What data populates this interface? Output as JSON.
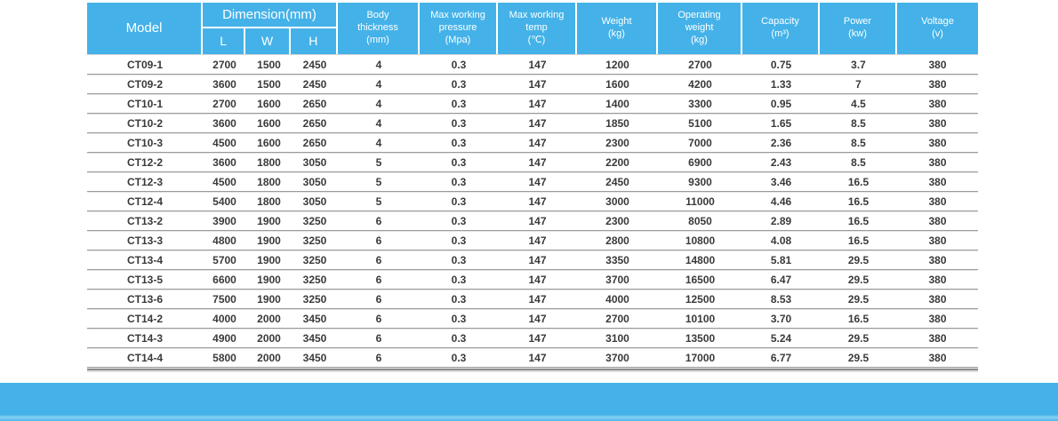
{
  "colors": {
    "accent_blue": "#44b2e8",
    "header_text": "#ffffff",
    "row_text": "#3a3a3a",
    "row_separator": "#9a9a9a"
  },
  "table": {
    "header": {
      "model": "Model",
      "dimension_group": "Dimension(mm)",
      "dim_l": "L",
      "dim_w": "W",
      "dim_h": "H",
      "body_thickness": "Body\nthickness\n(mm)",
      "max_working_pressure": "Max working\npressure\n(Mpa)",
      "max_working_temp": "Max working\ntemp\n(℃)",
      "weight": "Weight\n(kg)",
      "operating_weight": "Operating\nweight\n(kg)",
      "capacity": "Capacity\n(m³)",
      "power": "Power\n(kw)",
      "voltage": "Voltage\n(v)"
    },
    "rows": [
      [
        "CT09-1",
        "2700",
        "1500",
        "2450",
        "4",
        "0.3",
        "147",
        "1200",
        "2700",
        "0.75",
        "3.7",
        "380"
      ],
      [
        "CT09-2",
        "3600",
        "1500",
        "2450",
        "4",
        "0.3",
        "147",
        "1600",
        "4200",
        "1.33",
        "7",
        "380"
      ],
      [
        "CT10-1",
        "2700",
        "1600",
        "2650",
        "4",
        "0.3",
        "147",
        "1400",
        "3300",
        "0.95",
        "4.5",
        "380"
      ],
      [
        "CT10-2",
        "3600",
        "1600",
        "2650",
        "4",
        "0.3",
        "147",
        "1850",
        "5100",
        "1.65",
        "8.5",
        "380"
      ],
      [
        "CT10-3",
        "4500",
        "1600",
        "2650",
        "4",
        "0.3",
        "147",
        "2300",
        "7000",
        "2.36",
        "8.5",
        "380"
      ],
      [
        "CT12-2",
        "3600",
        "1800",
        "3050",
        "5",
        "0.3",
        "147",
        "2200",
        "6900",
        "2.43",
        "8.5",
        "380"
      ],
      [
        "CT12-3",
        "4500",
        "1800",
        "3050",
        "5",
        "0.3",
        "147",
        "2450",
        "9300",
        "3.46",
        "16.5",
        "380"
      ],
      [
        "CT12-4",
        "5400",
        "1800",
        "3050",
        "5",
        "0.3",
        "147",
        "3000",
        "11000",
        "4.46",
        "16.5",
        "380"
      ],
      [
        "CT13-2",
        "3900",
        "1900",
        "3250",
        "6",
        "0.3",
        "147",
        "2300",
        "8050",
        "2.89",
        "16.5",
        "380"
      ],
      [
        "CT13-3",
        "4800",
        "1900",
        "3250",
        "6",
        "0.3",
        "147",
        "2800",
        "10800",
        "4.08",
        "16.5",
        "380"
      ],
      [
        "CT13-4",
        "5700",
        "1900",
        "3250",
        "6",
        "0.3",
        "147",
        "3350",
        "14800",
        "5.81",
        "29.5",
        "380"
      ],
      [
        "CT13-5",
        "6600",
        "1900",
        "3250",
        "6",
        "0.3",
        "147",
        "3700",
        "16500",
        "6.47",
        "29.5",
        "380"
      ],
      [
        "CT13-6",
        "7500",
        "1900",
        "3250",
        "6",
        "0.3",
        "147",
        "4000",
        "12500",
        "8.53",
        "29.5",
        "380"
      ],
      [
        "CT14-2",
        "4000",
        "2000",
        "3450",
        "6",
        "0.3",
        "147",
        "2700",
        "10100",
        "3.70",
        "16.5",
        "380"
      ],
      [
        "CT14-3",
        "4900",
        "2000",
        "3450",
        "6",
        "0.3",
        "147",
        "3100",
        "13500",
        "5.24",
        "29.5",
        "380"
      ],
      [
        "CT14-4",
        "5800",
        "2000",
        "3450",
        "6",
        "0.3",
        "147",
        "3700",
        "17000",
        "6.77",
        "29.5",
        "380"
      ]
    ]
  }
}
